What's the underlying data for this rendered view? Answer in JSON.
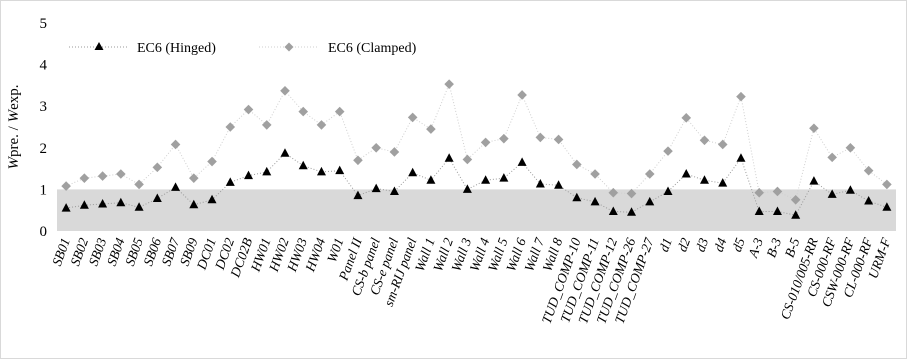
{
  "chart_data": {
    "type": "line",
    "xlabel": "",
    "ylabel_parts": {
      "a": "W",
      "b": "pre. / ",
      "c": "W",
      "d": "exp."
    },
    "ylim": [
      0,
      5
    ],
    "yticks": [
      0,
      1,
      2,
      3,
      4,
      5
    ],
    "shaded_band": [
      0,
      1
    ],
    "shaded_color": "#d9d9d9",
    "legend_position": "top-left",
    "categories": [
      "SB01",
      "SB02",
      "SB03",
      "SB04",
      "SB05",
      "SB06",
      "SB07",
      "SB09",
      "DC01",
      "DC02",
      "DC02B",
      "HW01",
      "HW02",
      "HW03",
      "HW04",
      "W01",
      "Panel II",
      "CS-b panel",
      "CS-e panel",
      "sm-RIJ panel",
      "Wall 1",
      "Wall 2",
      "Wall 3",
      "Wall 4",
      "Wall 5",
      "Wall 6",
      "Wall 7",
      "Wall 8",
      "TUD_COMP-10",
      "TUD_COMP-11",
      "TUD_COMP-12",
      "TUD_COMP-26",
      "TUD_COMP-27",
      "d1",
      "d2",
      "d3",
      "d4",
      "d5",
      "A-3",
      "B-3",
      "B-5",
      "CS-010/005-RR",
      "CS-000-RF",
      "CSW-000-RF",
      "CL-000-RF",
      "URM-F"
    ],
    "series": [
      {
        "name": "EC6 (Hinged)",
        "marker": "triangle",
        "color": "#000000",
        "line_color": "#9a9a9a",
        "values": [
          0.55,
          0.62,
          0.65,
          0.68,
          0.57,
          0.78,
          1.05,
          0.63,
          0.75,
          1.17,
          1.33,
          1.42,
          1.87,
          1.57,
          1.42,
          1.45,
          0.85,
          1.02,
          0.95,
          1.4,
          1.22,
          1.75,
          1.0,
          1.22,
          1.27,
          1.65,
          1.13,
          1.1,
          0.8,
          0.7,
          0.47,
          0.45,
          0.7,
          0.95,
          1.37,
          1.22,
          1.15,
          1.75,
          0.47,
          0.47,
          0.38,
          1.2,
          0.88,
          0.98,
          0.72,
          0.57
        ]
      },
      {
        "name": "EC6 (Clamped)",
        "marker": "diamond",
        "color": "#a0a0a0",
        "line_color": "#cfcfcf",
        "values": [
          1.08,
          1.27,
          1.32,
          1.37,
          1.12,
          1.53,
          2.08,
          1.27,
          1.67,
          2.5,
          2.92,
          2.55,
          3.37,
          2.87,
          2.55,
          2.87,
          1.7,
          2.0,
          1.9,
          2.73,
          2.45,
          3.53,
          1.72,
          2.13,
          2.22,
          3.27,
          2.25,
          2.2,
          1.6,
          1.37,
          0.92,
          0.9,
          1.37,
          1.92,
          2.72,
          2.18,
          2.08,
          3.23,
          0.92,
          0.95,
          0.75,
          2.47,
          1.77,
          2.0,
          1.45,
          1.12
        ]
      }
    ]
  }
}
